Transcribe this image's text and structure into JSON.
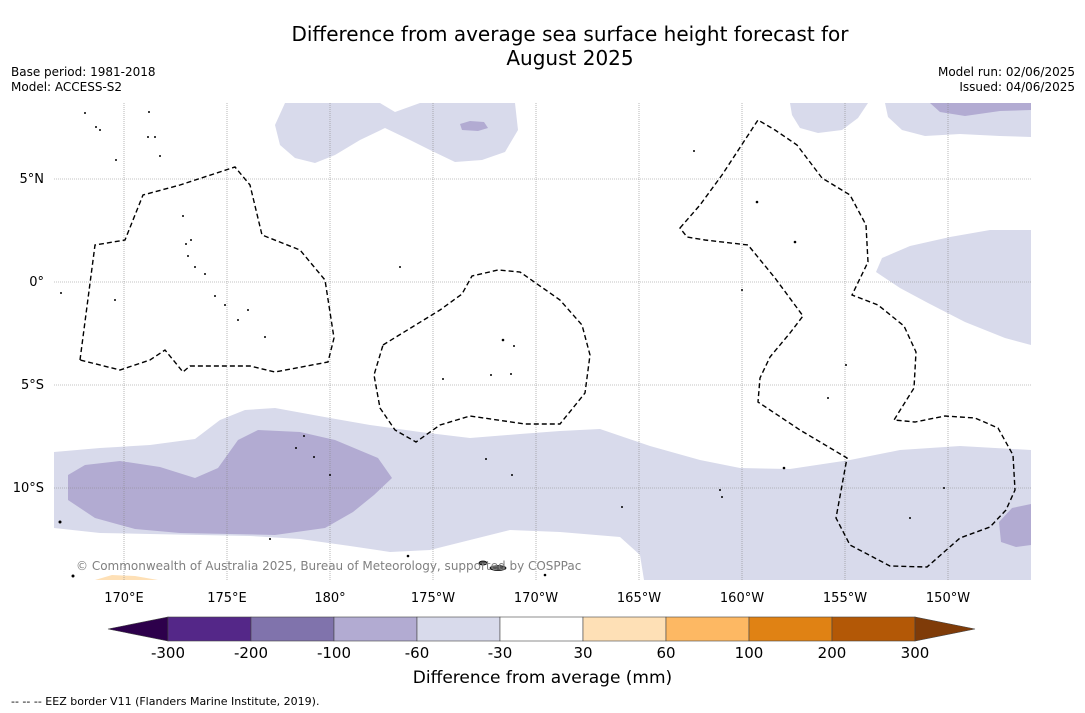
{
  "title_line1": "Difference from average sea surface height forecast for",
  "title_line2": "August 2025",
  "base_period": "Base period: 1981-2018",
  "model": "Model: ACCESS-S2",
  "model_run": "Model run: 02/06/2025",
  "issued": "Issued: 04/06/2025",
  "copyright": "© Commonwealth of Australia 2025, Bureau of Meteorology, supported by COSPPac",
  "lat_labels": [
    "5°N",
    "0°",
    "5°S",
    "10°S"
  ],
  "lon_labels": [
    "170°E",
    "175°E",
    "180°",
    "175°W",
    "170°W",
    "165°W",
    "160°W",
    "155°W",
    "150°W"
  ],
  "colorbar": {
    "title": "Difference from average (mm)",
    "ticks": [
      "-300",
      "-200",
      "-100",
      "-60",
      "-30",
      "30",
      "60",
      "100",
      "200",
      "300"
    ],
    "colors": [
      "#2d004b",
      "#542788",
      "#8073ac",
      "#b2abd2",
      "#d8daeb",
      "#ffffff",
      "#fee0b6",
      "#fdb863",
      "#e08214",
      "#b35806",
      "#7f3b08"
    ]
  },
  "footer": "-- -- -- EEZ border V11 (Flanders Marine Institute, 2019)."
}
